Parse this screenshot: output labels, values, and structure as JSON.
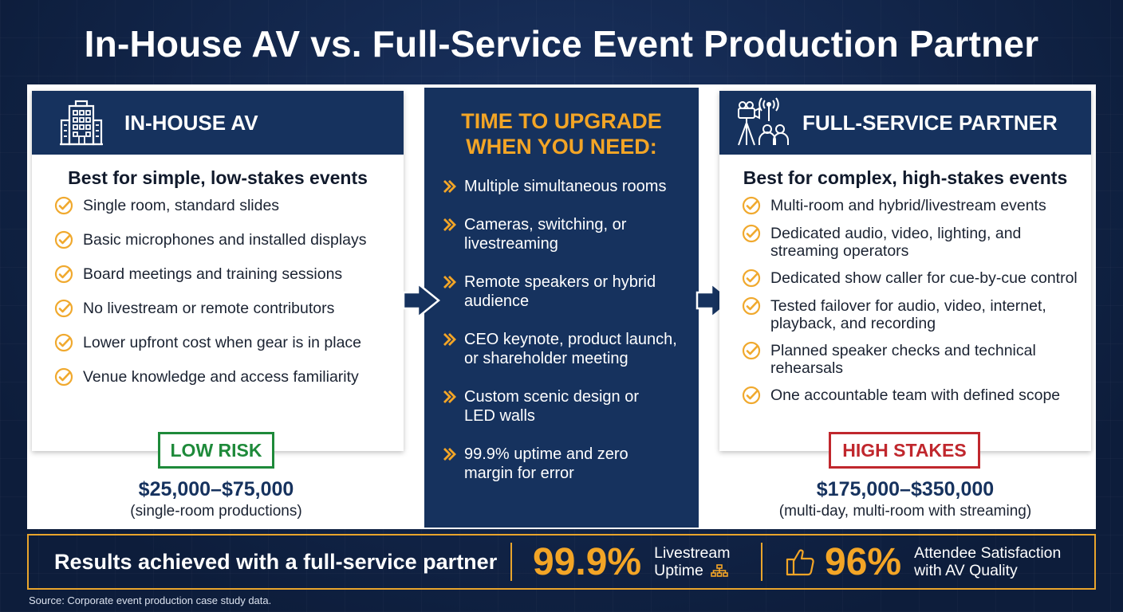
{
  "title": "In-House AV vs. Full-Service Event Production Partner",
  "in_house": {
    "header": "IN-HOUSE AV",
    "subtitle": "Best for simple, low-stakes events",
    "items": [
      "Single room, standard slides",
      "Basic microphones and installed displays",
      "Board meetings and training sessions",
      "No livestream or remote contributors",
      "Lower upfront cost when gear is in place",
      "Venue knowledge and access familiarity"
    ],
    "badge": "LOW RISK",
    "price": "$25,000–$75,000",
    "price_note": "(single-room productions)"
  },
  "upgrade": {
    "heading_line1": "TIME TO UPGRADE",
    "heading_line2": "WHEN YOU NEED:",
    "items": [
      [
        "Multiple simultaneous rooms"
      ],
      [
        "Cameras, switching, or",
        "livestreaming"
      ],
      [
        "Remote speakers or hybrid",
        "audience"
      ],
      [
        "CEO keynote, product launch,",
        "or shareholder meeting"
      ],
      [
        "Custom scenic design or",
        "LED walls"
      ],
      [
        "99.9% uptime and zero",
        "margin for error"
      ]
    ]
  },
  "full_service": {
    "header": "FULL-SERVICE PARTNER",
    "subtitle": "Best for complex, high-stakes events",
    "items": [
      [
        "Multi-room and hybrid/livestream events"
      ],
      [
        "Dedicated audio, video, lighting, and",
        "streaming operators"
      ],
      [
        "Dedicated show caller for cue-by-cue control"
      ],
      [
        "Tested failover for audio, video, internet,",
        "playback, and recording"
      ],
      [
        "Planned speaker checks and technical",
        "rehearsals"
      ],
      [
        "One accountable team with defined scope"
      ]
    ],
    "badge": "HIGH STAKES",
    "price": "$175,000–$350,000",
    "price_note": "(multi-day, multi-room with streaming)"
  },
  "results": {
    "label": "Results achieved with a full-service partner",
    "stat1": {
      "value": "99.9%",
      "label_line1": "Livestream",
      "label_line2": "Uptime"
    },
    "stat2": {
      "value": "96%",
      "label_line1": "Attendee Satisfaction",
      "label_line2": "with AV Quality"
    }
  },
  "source": "Source: Corporate event production case study data.",
  "colors": {
    "navy": "#16325e",
    "background": "#0f2244",
    "accent_gold": "#f3a526",
    "low_risk_green": "#1e8a3a",
    "high_stakes_red": "#c0272d"
  },
  "icons": [
    "office-building-icon",
    "film-crew-icon",
    "check-circle-icon",
    "chevron-right-icon",
    "arrow-right-icon",
    "network-icon",
    "thumbs-up-icon"
  ]
}
